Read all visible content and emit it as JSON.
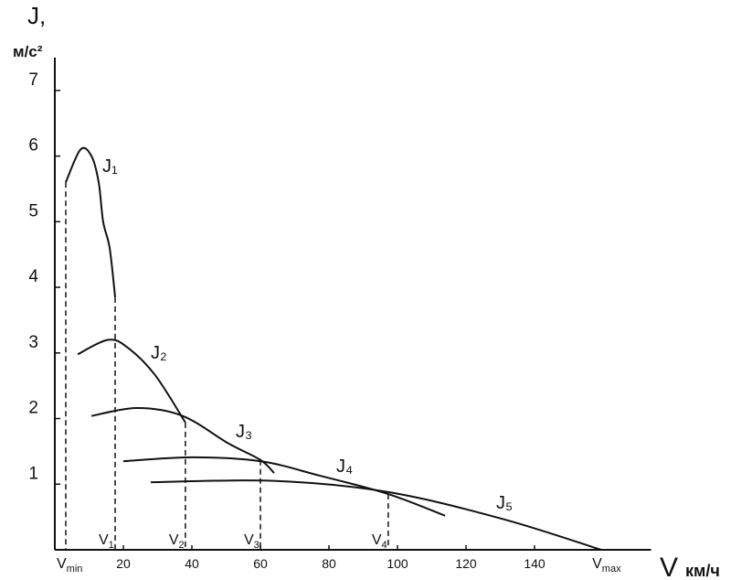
{
  "chart_data": {
    "type": "line",
    "y_label": "J,",
    "y_unit": "м/с²",
    "x_label": "V",
    "x_unit": "км/ч",
    "xlim": [
      0,
      174
    ],
    "ylim": [
      0,
      7.5
    ],
    "xticks": [
      20,
      40,
      60,
      80,
      100,
      120,
      140
    ],
    "yticks": [
      1,
      2,
      3,
      4,
      5,
      6,
      7
    ],
    "color": "#111111",
    "series": [
      {
        "name": "J₁",
        "x": [
          3.2,
          7.5,
          10.7,
          12.8,
          14.1,
          16,
          17.6
        ],
        "values": [
          5.6,
          6.1,
          6.0,
          5.6,
          5.0,
          4.6,
          3.85
        ]
      },
      {
        "name": "J₂",
        "x": [
          6.7,
          15.5,
          21.3,
          29.3,
          38.1
        ],
        "values": [
          2.98,
          3.2,
          3.08,
          2.66,
          1.94
        ]
      },
      {
        "name": "J₃",
        "x": [
          10.7,
          24,
          37.3,
          50.7,
          60,
          64
        ],
        "values": [
          2.04,
          2.16,
          2.04,
          1.62,
          1.37,
          1.17
        ]
      },
      {
        "name": "J₄",
        "x": [
          20,
          40,
          60,
          77.3,
          97.3,
          113.9
        ],
        "values": [
          1.35,
          1.41,
          1.35,
          1.13,
          0.85,
          0.52
        ]
      },
      {
        "name": "J₅",
        "x": [
          28,
          64,
          97.3,
          130.7,
          159.5
        ],
        "values": [
          1.03,
          1.05,
          0.88,
          0.47,
          0
        ]
      }
    ],
    "markers": [
      {
        "symbol": "V",
        "subscript": "min",
        "x": 3.2,
        "y": 5.6
      },
      {
        "symbol": "V",
        "subscript": "1",
        "x": 17.6,
        "y": 3.85
      },
      {
        "symbol": "V",
        "subscript": "2",
        "x": 38.1,
        "y": 1.94
      },
      {
        "symbol": "V",
        "subscript": "3",
        "x": 60,
        "y": 1.37
      },
      {
        "symbol": "V",
        "subscript": "4",
        "x": 97.3,
        "y": 0.85
      },
      {
        "symbol": "V",
        "subscript": "max",
        "x": 159.5,
        "y": 0
      }
    ]
  }
}
